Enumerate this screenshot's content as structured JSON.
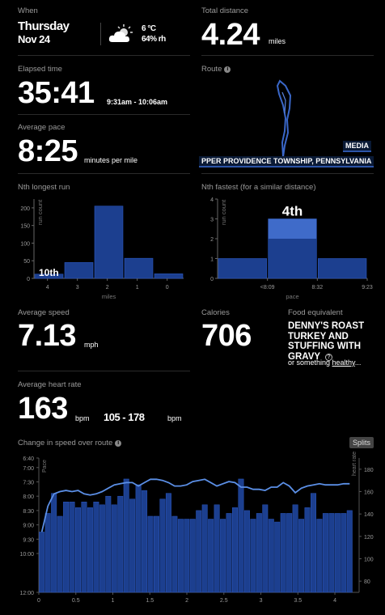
{
  "weather": {
    "label": "When",
    "day": "Thursday",
    "date": "Nov 24",
    "temp": "6 °C",
    "humidity": "64% rh",
    "icon": "partly-cloudy-icon"
  },
  "distance": {
    "label": "Total distance",
    "value": "4.24",
    "unit": "miles"
  },
  "elapsed": {
    "label": "Elapsed time",
    "value": "35:41",
    "range": "9:31am - 10:06am"
  },
  "route": {
    "label": "Route",
    "place1": "MEDIA",
    "place2": "PPER PROVIDENCE TOWNSHIP, PENNSYLVANIA"
  },
  "pace": {
    "label": "Average pace",
    "value": "8:25",
    "unit": "minutes per mile"
  },
  "nth_longest": {
    "label": "Nth longest run",
    "badge": "10th",
    "ylabel": "run count",
    "xlabel": "miles",
    "chart_data": {
      "type": "bar",
      "title": "Nth longest run",
      "xlabel": "miles",
      "ylabel": "run count",
      "bins": [
        "5-4",
        "4-3",
        "3-2",
        "2-1",
        "1-0"
      ],
      "values": [
        12,
        45,
        205,
        57,
        13
      ],
      "ylim": [
        0,
        225
      ],
      "y_ticks": [
        0,
        50,
        100,
        150,
        200
      ],
      "x_ticks": [
        "4",
        "3",
        "2",
        "1",
        "0"
      ],
      "highlight_bin": 0
    }
  },
  "nth_fastest": {
    "label": "Nth fastest (for a similar distance)",
    "badge": "4th",
    "ylabel": "run count",
    "xlabel": "pace",
    "chart_data": {
      "type": "bar",
      "xlabel": "pace",
      "ylabel": "run count",
      "bins": [
        "<8:09 left",
        "<8:09-8:32",
        "8:32-9:23"
      ],
      "values": [
        1,
        3,
        1
      ],
      "ylim": [
        0,
        4
      ],
      "y_ticks": [
        0,
        1,
        2,
        3,
        4
      ],
      "x_ticks": [
        "<8:09",
        "8:32",
        "9:23"
      ],
      "highlight_bin": 1
    }
  },
  "speed": {
    "label": "Average speed",
    "value": "7.13",
    "unit": "mph"
  },
  "calories": {
    "label": "Calories",
    "value": "706"
  },
  "food": {
    "label": "Food equivalent",
    "name": "DENNY'S ROAST TURKEY AND STUFFING WITH GRAVY",
    "question": "?",
    "alt_prefix": "or something ",
    "alt_link": "healthy",
    "alt_suffix": "..."
  },
  "heart": {
    "label": "Average heart rate",
    "value": "163",
    "unit": "bpm",
    "range": "105 - 178",
    "range_unit": "bpm"
  },
  "speed_change": {
    "label": "Change in speed over route",
    "splits_label": "Splits",
    "chart_data": {
      "type": "bar+line",
      "xlabel": "",
      "ylabel_left": "Pace",
      "ylabel_right": "heart rate",
      "x_ticks": [
        "0",
        "0.5",
        "1",
        "1.5",
        "2",
        "2.5",
        "3",
        "3.5",
        "4"
      ],
      "y_left_ticks": [
        "6:40",
        "7:00",
        "7:30",
        "8:00",
        "8:30",
        "9:00",
        "9:30",
        "10:00",
        "12:00"
      ],
      "y_right_ticks": [
        "180",
        "160",
        "140",
        "120",
        "100",
        "80"
      ],
      "pace_bars_min_per_mile": [
        9.25,
        8.6,
        7.9,
        8.7,
        8.2,
        8.2,
        8.4,
        8.2,
        8.4,
        8.2,
        8.3,
        8.0,
        8.3,
        8.0,
        7.4,
        8.1,
        7.6,
        7.8,
        8.7,
        8.7,
        8.1,
        7.9,
        8.7,
        8.8,
        8.8,
        8.8,
        8.5,
        8.3,
        8.8,
        8.3,
        8.8,
        8.6,
        8.4,
        7.4,
        8.5,
        8.8,
        8.6,
        8.3,
        8.8,
        8.9,
        8.6,
        8.6,
        8.3,
        8.8,
        8.4,
        7.9,
        8.8,
        8.6,
        8.6,
        8.6,
        8.6,
        8.5
      ],
      "x_max_miles": 4.24,
      "heart_rate_bpm": [
        124,
        147,
        158,
        160,
        161,
        160,
        161,
        158,
        157,
        158,
        160,
        163,
        166,
        167,
        168,
        168,
        165,
        168,
        171,
        171,
        170,
        168,
        165,
        165,
        166,
        169,
        170,
        171,
        168,
        165,
        167,
        169,
        168,
        164,
        164,
        162,
        162,
        161,
        164,
        164,
        168,
        165,
        159,
        163,
        165,
        166,
        167,
        166,
        166,
        166,
        167,
        167
      ]
    }
  }
}
